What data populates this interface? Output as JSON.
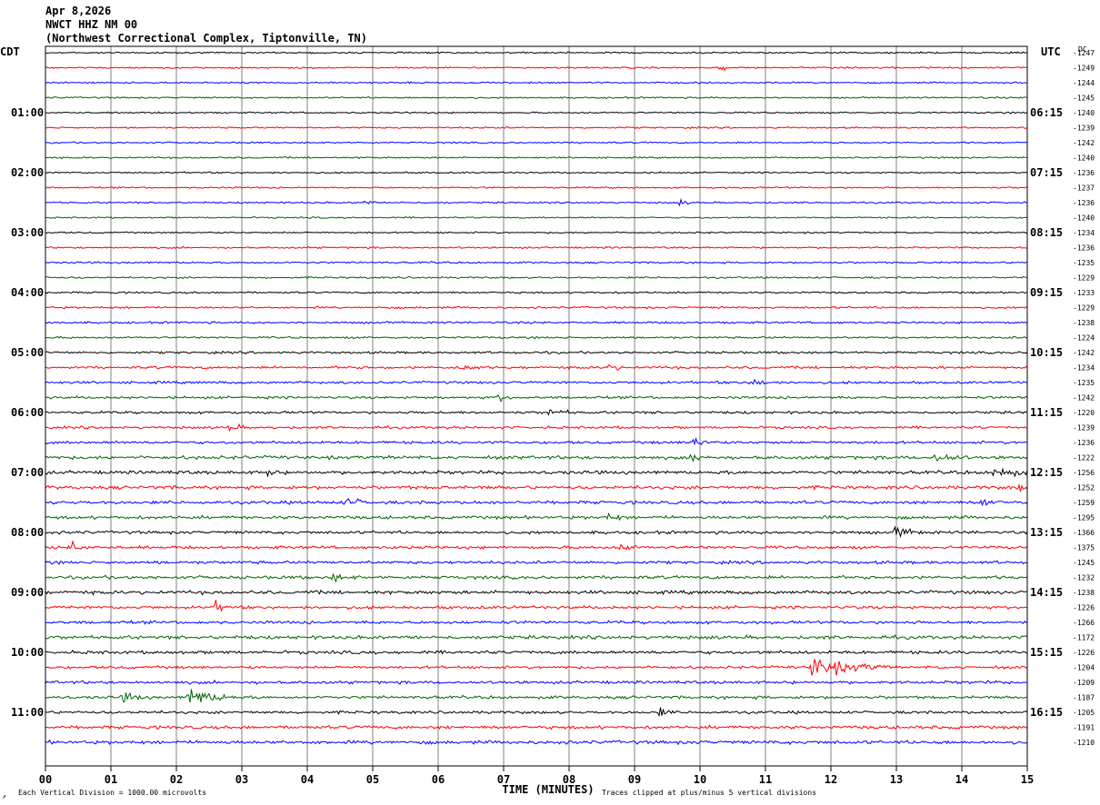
{
  "header": {
    "date": "Apr 8,2026",
    "station": "NWCT HHZ NM 00",
    "location": "(Northwest Correctional Complex, Tiptonville, TN)"
  },
  "left_timezone": "CDT",
  "right_timezone": "UTC",
  "dc_header": "DC",
  "footer": {
    "xlabel": "TIME (MINUTES)",
    "scale_note": "Each Vertical Division = 1000.00 microvolts",
    "clip_note": "Traces clipped at plus/minus 5 vertical divisions"
  },
  "colors": {
    "trace_cycle": [
      "#000000",
      "#ff0000",
      "#0000ff",
      "#006400"
    ],
    "grid": "#808080"
  },
  "chart_data": {
    "type": "line",
    "subtype": "helicorder",
    "x_ticks": [
      "00",
      "01",
      "02",
      "03",
      "04",
      "05",
      "06",
      "07",
      "08",
      "09",
      "10",
      "11",
      "12",
      "13",
      "14",
      "15"
    ],
    "xlim": [
      0,
      15
    ],
    "rows_per_hour": 4,
    "left_labels": [
      {
        "row": 4,
        "text": "01:00"
      },
      {
        "row": 8,
        "text": "02:00"
      },
      {
        "row": 12,
        "text": "03:00"
      },
      {
        "row": 16,
        "text": "04:00"
      },
      {
        "row": 20,
        "text": "05:00"
      },
      {
        "row": 24,
        "text": "06:00"
      },
      {
        "row": 28,
        "text": "07:00"
      },
      {
        "row": 32,
        "text": "08:00"
      },
      {
        "row": 36,
        "text": "09:00"
      },
      {
        "row": 40,
        "text": "10:00"
      },
      {
        "row": 44,
        "text": "11:00"
      }
    ],
    "right_labels": [
      {
        "row": 4,
        "text": "06:15"
      },
      {
        "row": 8,
        "text": "07:15"
      },
      {
        "row": 12,
        "text": "08:15"
      },
      {
        "row": 16,
        "text": "09:15"
      },
      {
        "row": 20,
        "text": "10:15"
      },
      {
        "row": 24,
        "text": "11:15"
      },
      {
        "row": 28,
        "text": "12:15"
      },
      {
        "row": 32,
        "text": "13:15"
      },
      {
        "row": 36,
        "text": "14:15"
      },
      {
        "row": 40,
        "text": "15:15"
      },
      {
        "row": 44,
        "text": "16:15"
      }
    ],
    "dc_offsets": [
      "-1247",
      "-1249",
      "-1244",
      "-1245",
      "-1240",
      "-1239",
      "-1242",
      "-1240",
      "-1236",
      "-1237",
      "-1236",
      "-1240",
      "-1234",
      "-1236",
      "-1235",
      "-1229",
      "-1233",
      "-1229",
      "-1238",
      "-1224",
      "-1242",
      "-1234",
      "-1235",
      "-1242",
      "-1220",
      "-1239",
      "-1236",
      "-1222",
      "-1256",
      "-1252",
      "-1259",
      "-1295",
      "-1366",
      "-1375",
      "-1245",
      "-1232",
      "-1238",
      "-1226",
      "-1266",
      "-1172",
      "-1226",
      "-1204",
      "-1209",
      "-1187",
      "-1205",
      "-1191",
      "-1210"
    ],
    "noise_level": [
      0.7,
      0.7,
      0.7,
      0.7,
      0.7,
      0.7,
      0.7,
      0.7,
      0.7,
      0.7,
      0.7,
      0.7,
      0.7,
      0.8,
      0.8,
      0.8,
      0.8,
      0.9,
      0.9,
      0.9,
      1.0,
      1.1,
      1.1,
      1.1,
      1.1,
      1.1,
      1.2,
      1.5,
      1.5,
      1.5,
      1.4,
      1.4,
      1.3,
      1.3,
      1.3,
      1.4,
      1.5,
      1.3,
      1.3,
      1.5,
      1.4,
      1.2,
      1.3,
      1.3,
      1.2,
      1.4,
      1.5
    ],
    "events": [
      {
        "row": 1,
        "minute": 10.3,
        "amp": 3,
        "dur": 0.2
      },
      {
        "row": 10,
        "minute": 4.9,
        "amp": 3,
        "dur": 0.15
      },
      {
        "row": 10,
        "minute": 9.7,
        "amp": 3,
        "dur": 0.15
      },
      {
        "row": 21,
        "minute": 6.4,
        "amp": 4,
        "dur": 0.3
      },
      {
        "row": 21,
        "minute": 8.6,
        "amp": 3,
        "dur": 0.3
      },
      {
        "row": 22,
        "minute": 10.8,
        "amp": 4,
        "dur": 0.4
      },
      {
        "row": 23,
        "minute": 6.9,
        "amp": 3,
        "dur": 0.3
      },
      {
        "row": 24,
        "minute": 7.7,
        "amp": 3,
        "dur": 0.4
      },
      {
        "row": 25,
        "minute": 2.8,
        "amp": 3,
        "dur": 0.3
      },
      {
        "row": 26,
        "minute": 9.9,
        "amp": 5,
        "dur": 0.35
      },
      {
        "row": 27,
        "minute": 9.9,
        "amp": 4,
        "dur": 0.3
      },
      {
        "row": 27,
        "minute": 13.6,
        "amp": 4,
        "dur": 0.5
      },
      {
        "row": 28,
        "minute": 3.4,
        "amp": 4,
        "dur": 0.2
      },
      {
        "row": 28,
        "minute": 14.5,
        "amp": 5,
        "dur": 0.6
      },
      {
        "row": 29,
        "minute": 14.9,
        "amp": 4,
        "dur": 0.2
      },
      {
        "row": 30,
        "minute": 4.6,
        "amp": 4,
        "dur": 0.4
      },
      {
        "row": 30,
        "minute": 14.3,
        "amp": 4,
        "dur": 0.3
      },
      {
        "row": 31,
        "minute": 8.6,
        "amp": 3,
        "dur": 0.3
      },
      {
        "row": 32,
        "minute": 13.0,
        "amp": 5,
        "dur": 0.4
      },
      {
        "row": 33,
        "minute": 0.4,
        "amp": 5,
        "dur": 0.3
      },
      {
        "row": 33,
        "minute": 8.8,
        "amp": 3,
        "dur": 0.3
      },
      {
        "row": 35,
        "minute": 4.4,
        "amp": 3,
        "dur": 0.4
      },
      {
        "row": 37,
        "minute": 2.6,
        "amp": 4,
        "dur": 0.3
      },
      {
        "row": 41,
        "minute": 11.7,
        "amp": 9,
        "dur": 1.2
      },
      {
        "row": 43,
        "minute": 2.2,
        "amp": 9,
        "dur": 0.7
      },
      {
        "row": 43,
        "minute": 1.2,
        "amp": 4,
        "dur": 0.4
      },
      {
        "row": 44,
        "minute": 9.4,
        "amp": 4,
        "dur": 0.2
      },
      {
        "row": 47,
        "minute": 5.6,
        "amp": 4,
        "dur": 0.3
      },
      {
        "row": 47,
        "minute": 1.0,
        "amp": 3,
        "dur": 0.4
      }
    ]
  }
}
